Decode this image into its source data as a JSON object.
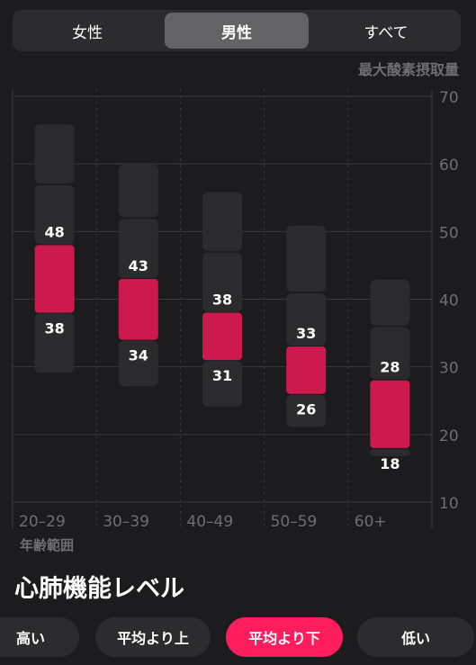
{
  "segments": {
    "items": [
      "女性",
      "男性",
      "すべて"
    ],
    "selected": "男性"
  },
  "chart_data": {
    "type": "range-bar",
    "title": "最大酸素摂取量",
    "xlabel": "年齢範囲",
    "ylim": [
      10,
      70
    ],
    "yticks": [
      10,
      20,
      30,
      40,
      50,
      60,
      70
    ],
    "categories": [
      "20–29",
      "30–39",
      "40–49",
      "50–59",
      "60+"
    ],
    "highlight_range": {
      "low": [
        38,
        34,
        31,
        26,
        18
      ],
      "high": [
        48,
        43,
        38,
        33,
        28
      ]
    },
    "background_bands": [
      [
        [
          29,
          38
        ],
        [
          48,
          57
        ],
        [
          57,
          66
        ]
      ],
      [
        [
          27,
          34
        ],
        [
          43,
          52
        ],
        [
          52,
          60
        ]
      ],
      [
        [
          24,
          31
        ],
        [
          38,
          47
        ],
        [
          47,
          56
        ]
      ],
      [
        [
          21,
          26
        ],
        [
          33,
          41
        ],
        [
          41,
          51
        ]
      ],
      [
        [
          18,
          18
        ],
        [
          28,
          36
        ],
        [
          36,
          43
        ]
      ]
    ],
    "colors": {
      "highlight": "#cc1a4e",
      "band": "#2b2b2d",
      "grid": "#3a3a3c",
      "axis_text": "#6e6e73"
    }
  },
  "section": {
    "title": "心肺機能レベル"
  },
  "filters": {
    "items": [
      "高い",
      "平均より上",
      "平均より下",
      "低い"
    ],
    "selected": "平均より下",
    "active_color": "#ff1d5e"
  }
}
